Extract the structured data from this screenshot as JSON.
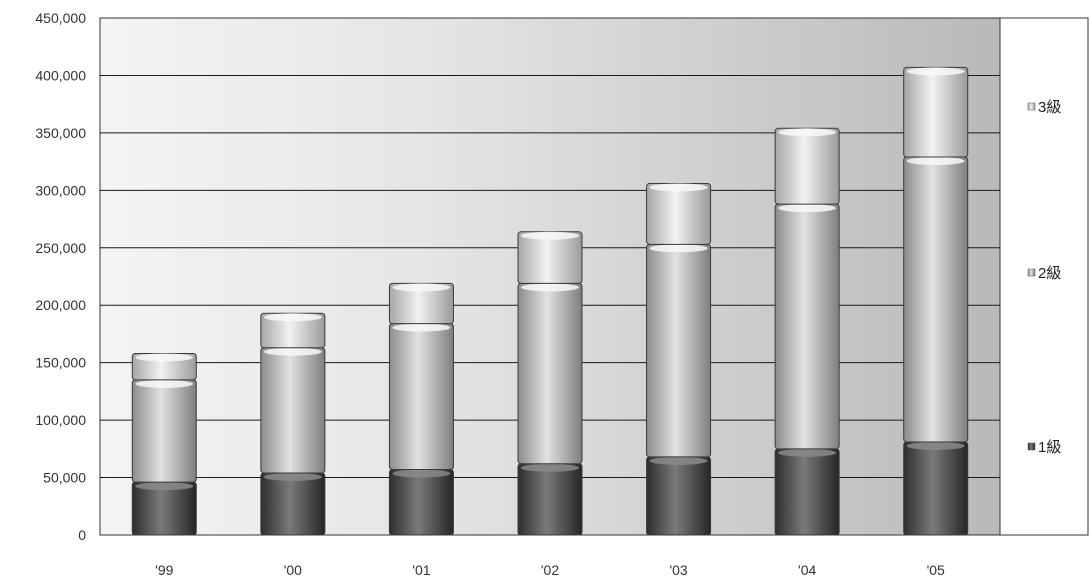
{
  "chart_data": {
    "type": "bar",
    "stacked": true,
    "categories": [
      "'99",
      "'00",
      "'01",
      "'02",
      "'03",
      "'04",
      "'05"
    ],
    "series": [
      {
        "name": "1級",
        "values": [
          46000,
          54000,
          57000,
          62000,
          68000,
          75000,
          81000
        ]
      },
      {
        "name": "2級",
        "values": [
          89000,
          109000,
          127000,
          157000,
          185000,
          213000,
          248000
        ]
      },
      {
        "name": "3級",
        "values": [
          23000,
          30000,
          35000,
          45000,
          53000,
          66000,
          78000
        ]
      }
    ],
    "yticks": [
      "0",
      "50,000",
      "100,000",
      "150,000",
      "200,000",
      "250,000",
      "300,000",
      "350,000",
      "400,000",
      "450,000"
    ],
    "ylim": [
      0,
      450000
    ],
    "grid": true,
    "legend_position": "right",
    "colors": {
      "series1": "#4a4a4a",
      "series2": "#b5b5b5",
      "series3": "#d3d3d3",
      "plot_bg": "#c4c4c4",
      "grid": "#1a1a1a"
    }
  }
}
